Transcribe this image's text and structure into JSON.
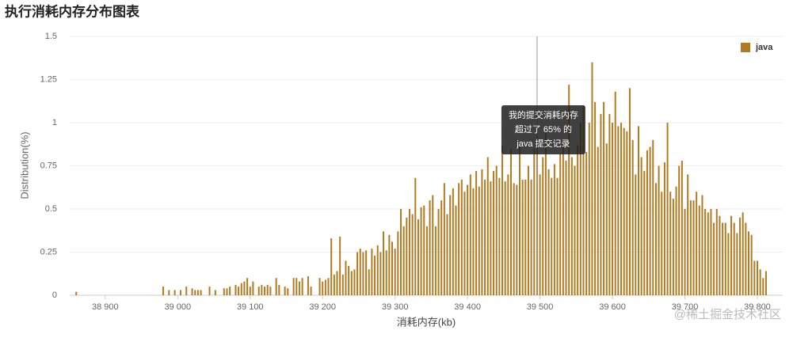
{
  "chart_data": {
    "type": "bar",
    "title": "执行消耗内存分布图表",
    "x_label": "消耗内存(kb)",
    "y_label": "Distribution(%)",
    "legend_position": "top-right",
    "grid": true,
    "watermark": "@稀土掘金技术社区",
    "tooltip": {
      "x": 39496,
      "lines": [
        "我的提交消耗内存",
        "超过了 65% 的",
        "java 提交记录"
      ]
    },
    "xlim": [
      38851,
      39835
    ],
    "ylim": [
      0,
      1.5
    ],
    "yticks": [
      0,
      0.25,
      0.5,
      0.75,
      1,
      1.25,
      1.5
    ],
    "xticks": [
      {
        "value": 38900,
        "label": "38 900"
      },
      {
        "value": 39000,
        "label": "39 000"
      },
      {
        "value": 39100,
        "label": "39 100"
      },
      {
        "value": 39200,
        "label": "39 200"
      },
      {
        "value": 39300,
        "label": "39 300"
      },
      {
        "value": 39400,
        "label": "39 400"
      },
      {
        "value": 39500,
        "label": "39 500"
      },
      {
        "value": 39600,
        "label": "39 600"
      },
      {
        "value": 39700,
        "label": "39 700"
      },
      {
        "value": 39800,
        "label": "39 800"
      }
    ],
    "x": [
      38860,
      38980,
      38988,
      38996,
      39004,
      39012,
      39020,
      39024,
      39028,
      39032,
      39044,
      39052,
      39064,
      39068,
      39072,
      39080,
      39084,
      39088,
      39092,
      39096,
      39100,
      39104,
      39112,
      39116,
      39120,
      39124,
      39128,
      39136,
      39140,
      39148,
      39152,
      39160,
      39164,
      39168,
      39172,
      39180,
      39184,
      39196,
      39200,
      39204,
      39208,
      39212,
      39216,
      39220,
      39224,
      39228,
      39232,
      39236,
      39240,
      39244,
      39248,
      39252,
      39256,
      39260,
      39264,
      39268,
      39272,
      39276,
      39280,
      39284,
      39288,
      39292,
      39296,
      39300,
      39304,
      39308,
      39312,
      39316,
      39320,
      39324,
      39328,
      39332,
      39336,
      39340,
      39344,
      39348,
      39352,
      39356,
      39360,
      39364,
      39368,
      39372,
      39376,
      39380,
      39384,
      39388,
      39392,
      39396,
      39400,
      39404,
      39408,
      39412,
      39416,
      39420,
      39424,
      39428,
      39432,
      39436,
      39440,
      39444,
      39448,
      39452,
      39456,
      39460,
      39464,
      39468,
      39472,
      39476,
      39480,
      39484,
      39488,
      39492,
      39496,
      39500,
      39504,
      39508,
      39512,
      39516,
      39520,
      39524,
      39528,
      39532,
      39536,
      39540,
      39544,
      39548,
      39552,
      39556,
      39560,
      39564,
      39568,
      39572,
      39576,
      39580,
      39584,
      39588,
      39592,
      39596,
      39600,
      39604,
      39608,
      39612,
      39616,
      39620,
      39624,
      39628,
      39632,
      39636,
      39640,
      39644,
      39648,
      39652,
      39656,
      39660,
      39664,
      39668,
      39672,
      39676,
      39680,
      39684,
      39688,
      39692,
      39696,
      39700,
      39704,
      39708,
      39712,
      39716,
      39720,
      39724,
      39728,
      39732,
      39736,
      39740,
      39744,
      39748,
      39752,
      39756,
      39760,
      39764,
      39768,
      39772,
      39776,
      39780,
      39784,
      39788,
      39792,
      39796,
      39800,
      39804,
      39808,
      39812
    ],
    "series": [
      {
        "name": "java",
        "color": "#b27b22",
        "values": [
          0.02,
          0.05,
          0.03,
          0.03,
          0.03,
          0.05,
          0.04,
          0.03,
          0.03,
          0.03,
          0.05,
          0.03,
          0.04,
          0.04,
          0.05,
          0.06,
          0.05,
          0.07,
          0.08,
          0.1,
          0.05,
          0.08,
          0.05,
          0.06,
          0.05,
          0.06,
          0.05,
          0.1,
          0.06,
          0.05,
          0.04,
          0.1,
          0.1,
          0.08,
          0.1,
          0.11,
          0.05,
          0.1,
          0.08,
          0.09,
          0.1,
          0.33,
          0.12,
          0.14,
          0.34,
          0.12,
          0.2,
          0.17,
          0.14,
          0.15,
          0.25,
          0.27,
          0.25,
          0.26,
          0.15,
          0.27,
          0.23,
          0.29,
          0.25,
          0.37,
          0.26,
          0.35,
          0.31,
          0.27,
          0.37,
          0.5,
          0.4,
          0.45,
          0.5,
          0.47,
          0.68,
          0.44,
          0.51,
          0.52,
          0.4,
          0.55,
          0.58,
          0.4,
          0.5,
          0.55,
          0.65,
          0.47,
          0.58,
          0.62,
          0.52,
          0.65,
          0.67,
          0.6,
          0.64,
          0.7,
          0.62,
          0.72,
          0.63,
          0.73,
          0.67,
          0.8,
          0.66,
          0.72,
          0.75,
          0.68,
          0.87,
          0.66,
          0.7,
          0.85,
          0.65,
          0.64,
          0.87,
          0.67,
          0.67,
          0.75,
          0.67,
          0.85,
          0.92,
          0.7,
          0.8,
          0.95,
          0.73,
          0.68,
          0.76,
          0.68,
          0.82,
          0.9,
          0.78,
          1.22,
          0.8,
          0.75,
          0.87,
          1.0,
          1.1,
          0.83,
          1.0,
          1.35,
          1.12,
          0.86,
          1.05,
          1.12,
          0.88,
          1.05,
          1.0,
          1.18,
          0.98,
          1.0,
          0.97,
          0.95,
          1.2,
          0.9,
          0.7,
          0.98,
          0.8,
          0.72,
          0.84,
          0.86,
          0.9,
          0.65,
          0.75,
          0.6,
          0.77,
          1.0,
          0.6,
          0.56,
          0.63,
          0.75,
          0.78,
          0.5,
          0.7,
          0.55,
          0.55,
          0.6,
          0.52,
          0.58,
          0.5,
          0.48,
          0.5,
          0.42,
          0.5,
          0.46,
          0.42,
          0.42,
          0.36,
          0.46,
          0.42,
          0.36,
          0.45,
          0.48,
          0.42,
          0.37,
          0.35,
          0.2,
          0.2,
          0.15,
          0.1,
          0.14
        ]
      }
    ]
  }
}
